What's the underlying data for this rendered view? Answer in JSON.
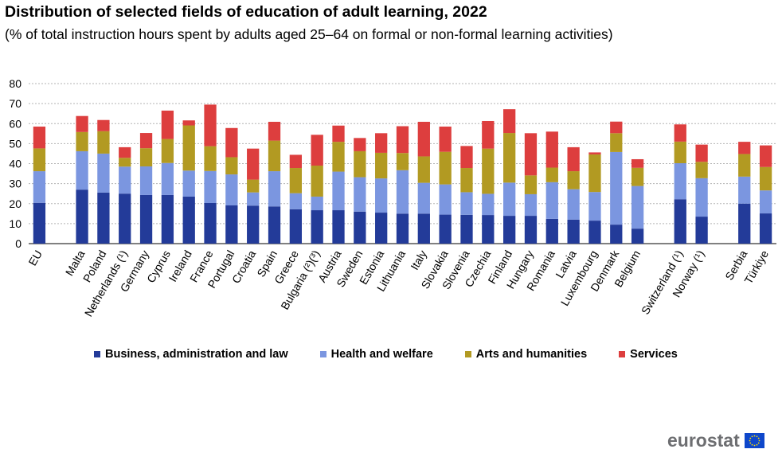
{
  "title": "Distribution of selected fields of education of adult learning, 2022",
  "subtitle": "(% of total instruction hours spent by adults aged 25–64 on formal or non-formal learning activities)",
  "logo_text": "eurostat",
  "colors": {
    "business": "#233b99",
    "health": "#7b96e0",
    "arts": "#b29a22",
    "services": "#dd3e3e",
    "grid": "#b3b3b3"
  },
  "chart_data": {
    "type": "bar",
    "stacked": true,
    "ylim": [
      0,
      80
    ],
    "yticks": [
      0,
      10,
      20,
      30,
      40,
      50,
      60,
      70,
      80
    ],
    "grid": true,
    "legend_position": "bottom",
    "categories": [
      "EU",
      "Malta",
      "Poland",
      "Netherlands (¹)",
      "Germany",
      "Cyprus",
      "Ireland",
      "France",
      "Portugal",
      "Croatia",
      "Spain",
      "Greece",
      "Bulgaria (²)(³)",
      "Austria",
      "Sweden",
      "Estonia",
      "Lithuania",
      "Italy",
      "Slovakia",
      "Slovenia",
      "Czechia",
      "Finland",
      "Hungary",
      "Romania",
      "Latvia",
      "Luxembourg",
      "Denmark",
      "Belgium",
      "Switzerland (¹)",
      "Norway (¹)",
      "Serbia",
      "Türkiye"
    ],
    "gap_after": [
      0,
      27,
      29
    ],
    "series": [
      {
        "name": "Business, administration and law",
        "color_key": "business",
        "values": [
          20.4,
          27.0,
          25.5,
          25.0,
          24.3,
          24.3,
          23.5,
          20.3,
          19.1,
          19.0,
          18.6,
          17.2,
          16.7,
          16.7,
          16.0,
          15.5,
          15.0,
          15.0,
          14.5,
          14.4,
          14.3,
          13.9,
          13.9,
          12.4,
          12.0,
          11.5,
          9.5,
          7.5,
          22.2,
          13.5,
          20.0,
          15.1
        ]
      },
      {
        "name": "Health and welfare",
        "color_key": "health",
        "values": [
          15.8,
          19.2,
          19.5,
          13.5,
          14.3,
          16.0,
          13.0,
          16.0,
          15.5,
          6.6,
          17.6,
          8.0,
          6.8,
          19.3,
          17.2,
          17.1,
          21.7,
          15.4,
          15.1,
          11.3,
          10.6,
          16.6,
          10.8,
          18.3,
          15.2,
          14.3,
          36.3,
          21.3,
          18.0,
          19.2,
          13.5,
          11.5
        ]
      },
      {
        "name": "Arts and humanities",
        "color_key": "arts",
        "values": [
          11.4,
          9.6,
          11.2,
          4.4,
          9.1,
          12.0,
          22.6,
          12.4,
          8.6,
          6.4,
          15.3,
          12.6,
          15.5,
          14.9,
          13.0,
          12.8,
          8.6,
          13.2,
          16.3,
          12.1,
          22.6,
          24.8,
          9.4,
          7.3,
          9.0,
          18.8,
          9.4,
          9.1,
          10.8,
          8.2,
          11.3,
          11.7
        ]
      },
      {
        "name": "Services",
        "color_key": "services",
        "values": [
          10.9,
          8.0,
          5.6,
          5.3,
          7.6,
          14.2,
          2.5,
          20.8,
          14.6,
          15.5,
          9.4,
          6.6,
          15.4,
          8.1,
          6.6,
          9.8,
          13.4,
          17.3,
          12.6,
          11.0,
          13.8,
          11.9,
          21.1,
          18.0,
          12.0,
          1.0,
          5.8,
          4.3,
          8.6,
          8.6,
          6.1,
          10.8
        ]
      }
    ]
  }
}
